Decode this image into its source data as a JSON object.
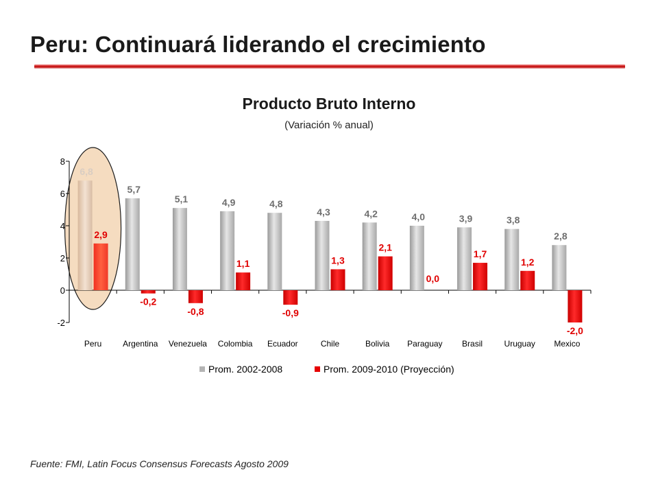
{
  "slide": {
    "title": "Peru: Continuará liderando el crecimiento",
    "footnote": "Fuente: FMI, Latin Focus Consensus Forecasts Agosto 2009"
  },
  "colors": {
    "series_gray": "#b4b4b4",
    "series_red": "#e60000",
    "highlight": "#f5dcc0",
    "title_rule": "#c00000"
  },
  "chart_data": {
    "type": "bar",
    "title": "Producto Bruto Interno",
    "subtitle": "(Variación % anual)",
    "categories": [
      "Peru",
      "Argentina",
      "Venezuela",
      "Colombia",
      "Ecuador",
      "Chile",
      "Bolivia",
      "Paraguay",
      "Brasil",
      "Uruguay",
      "Mexico"
    ],
    "series": [
      {
        "name": "Prom. 2002-2008",
        "values": [
          6.8,
          5.7,
          5.1,
          4.9,
          4.8,
          4.3,
          4.2,
          4.0,
          3.9,
          3.8,
          2.8
        ],
        "labels": [
          "6,8",
          "5,7",
          "5,1",
          "4,9",
          "4,8",
          "4,3",
          "4,2",
          "4,0",
          "3,9",
          "3,8",
          "2,8"
        ]
      },
      {
        "name": "Prom. 2009-2010 (Proyección)",
        "values": [
          2.9,
          -0.2,
          -0.8,
          1.1,
          -0.9,
          1.3,
          2.1,
          0.0,
          1.7,
          1.2,
          -2.0
        ],
        "labels": [
          "2,9",
          "-0,2",
          "-0,8",
          "1,1",
          "-0,9",
          "1,3",
          "2,1",
          "0,0",
          "1,7",
          "1,2",
          "-2,0"
        ]
      }
    ],
    "yticks": [
      "8",
      "6",
      "4",
      "2",
      "0",
      "-2"
    ],
    "ytick_values": [
      8,
      6,
      4,
      2,
      0,
      -2
    ],
    "ylim": [
      -2,
      8
    ],
    "grid": false,
    "legend_position": "bottom",
    "highlighted_category": "Peru"
  }
}
